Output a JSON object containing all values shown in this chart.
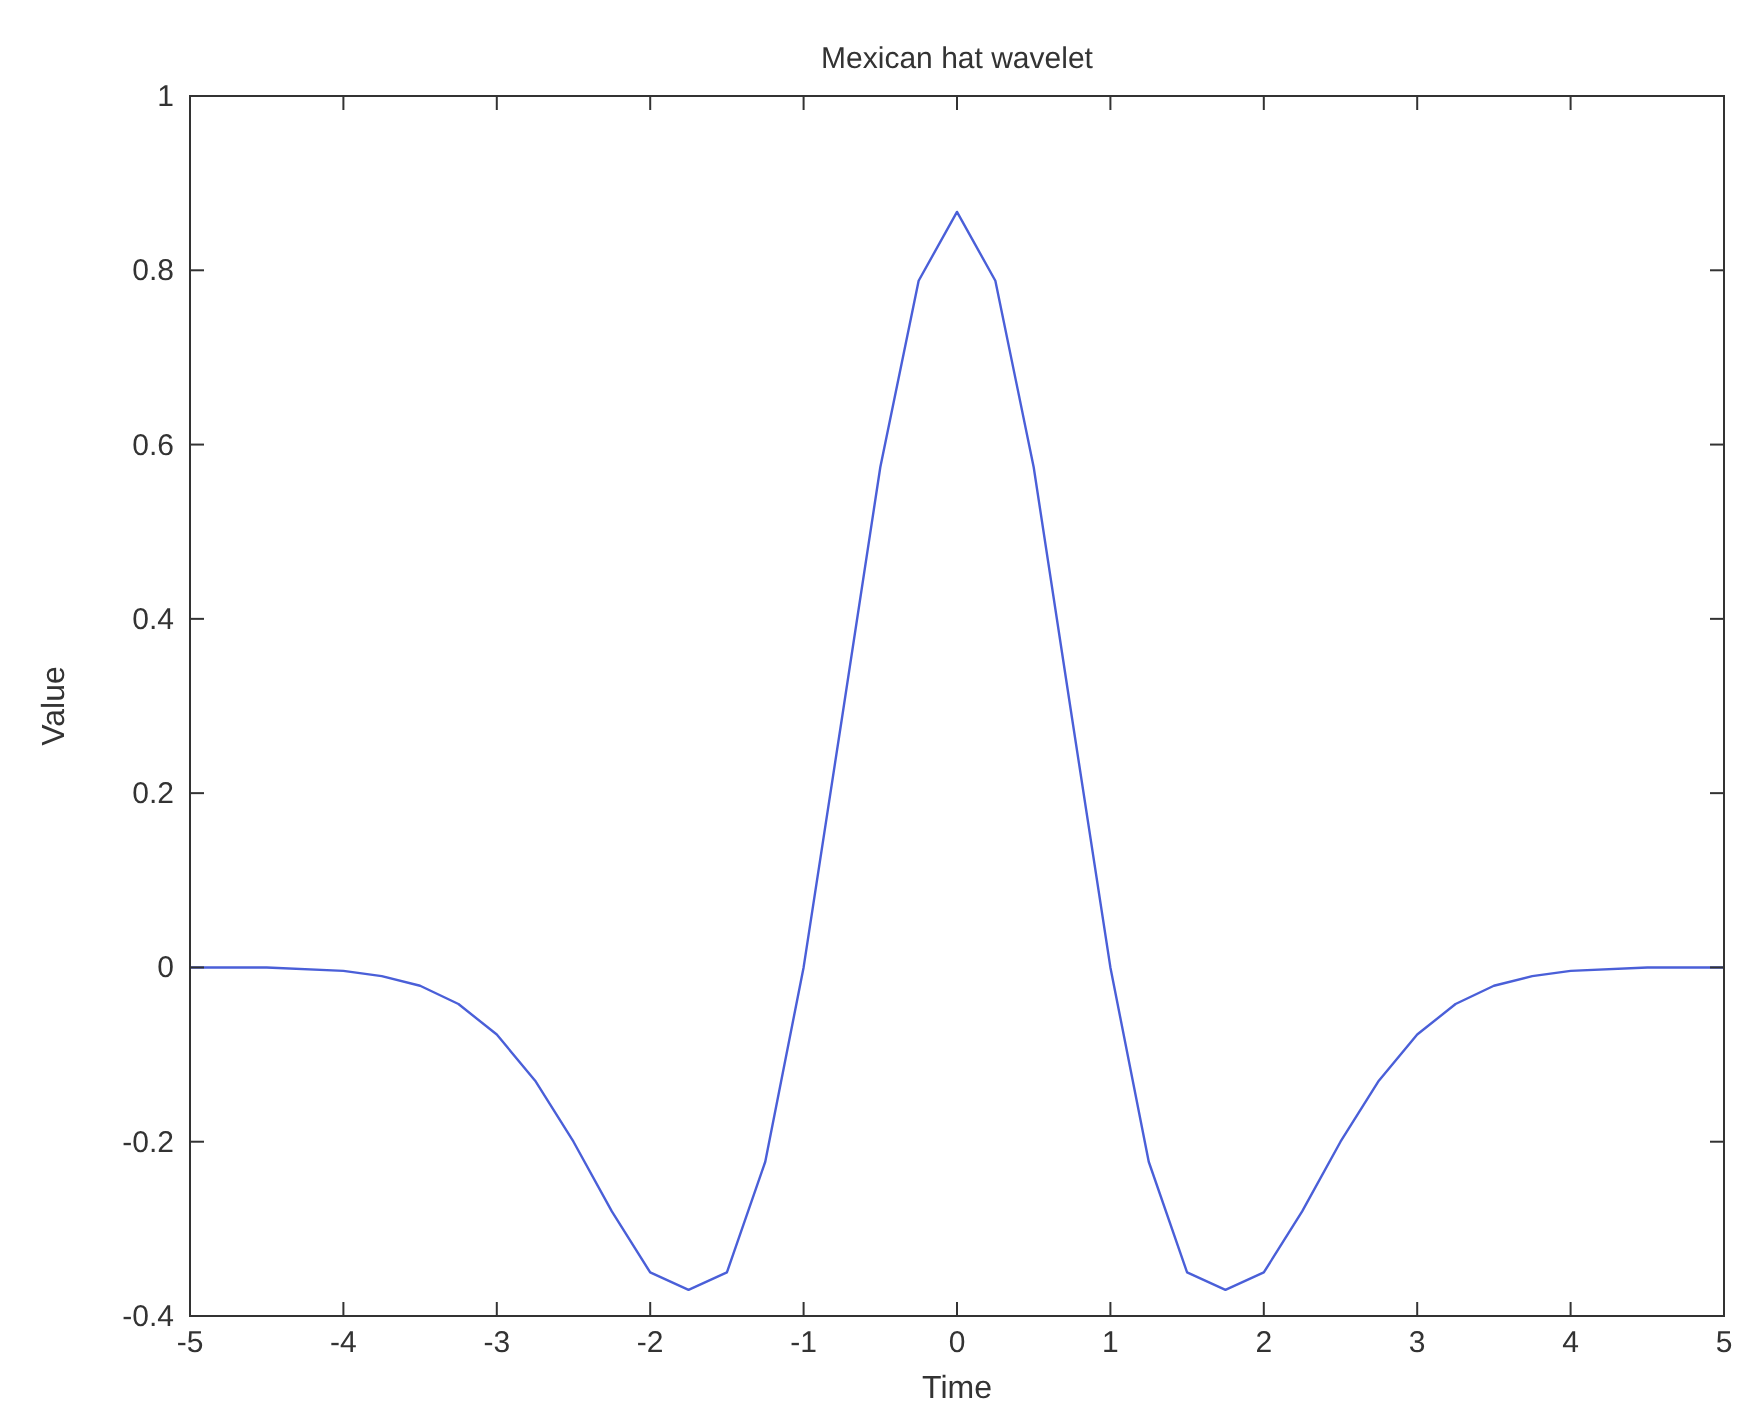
{
  "chart_data": {
    "type": "line",
    "title": "Mexican hat wavelet",
    "xlabel": "Time",
    "ylabel": "Value",
    "xlim": [
      -5,
      5
    ],
    "xticks": [
      -5,
      -4,
      -3,
      -2,
      -1,
      0,
      1,
      2,
      3,
      4,
      5
    ],
    "ylim": [
      -0.4,
      1
    ],
    "yticks": [
      -0.4,
      -0.2,
      0,
      0.2,
      0.4,
      0.6,
      0.8,
      1
    ],
    "grid": false,
    "marker": "none",
    "line_style": "solid",
    "series": [
      {
        "color": "#4a5fd8",
        "x": [
          -5,
          -4.5,
          -4,
          -3.75,
          -3.5,
          -3.25,
          -3,
          -2.75,
          -2.5,
          -2.25,
          -2,
          -1.75,
          -1.5,
          -1.25,
          -1,
          -0.75,
          -0.5,
          -0.25,
          0,
          0.25,
          0.5,
          0.75,
          1,
          1.25,
          1.5,
          1.75,
          2,
          2.25,
          2.5,
          2.75,
          3,
          3.25,
          3.5,
          3.75,
          4,
          4.5,
          5
        ],
        "values": [
          0,
          0,
          -0.004,
          -0.01,
          -0.021,
          -0.042,
          -0.077,
          -0.13,
          -0.2,
          -0.28,
          -0.35,
          -0.37,
          -0.35,
          -0.223,
          0,
          0.286,
          0.574,
          0.788,
          0.867,
          0.788,
          0.574,
          0.286,
          0,
          -0.223,
          -0.35,
          -0.37,
          -0.35,
          -0.28,
          -0.2,
          -0.13,
          -0.077,
          -0.042,
          -0.021,
          -0.01,
          -0.004,
          0,
          0
        ]
      }
    ]
  }
}
